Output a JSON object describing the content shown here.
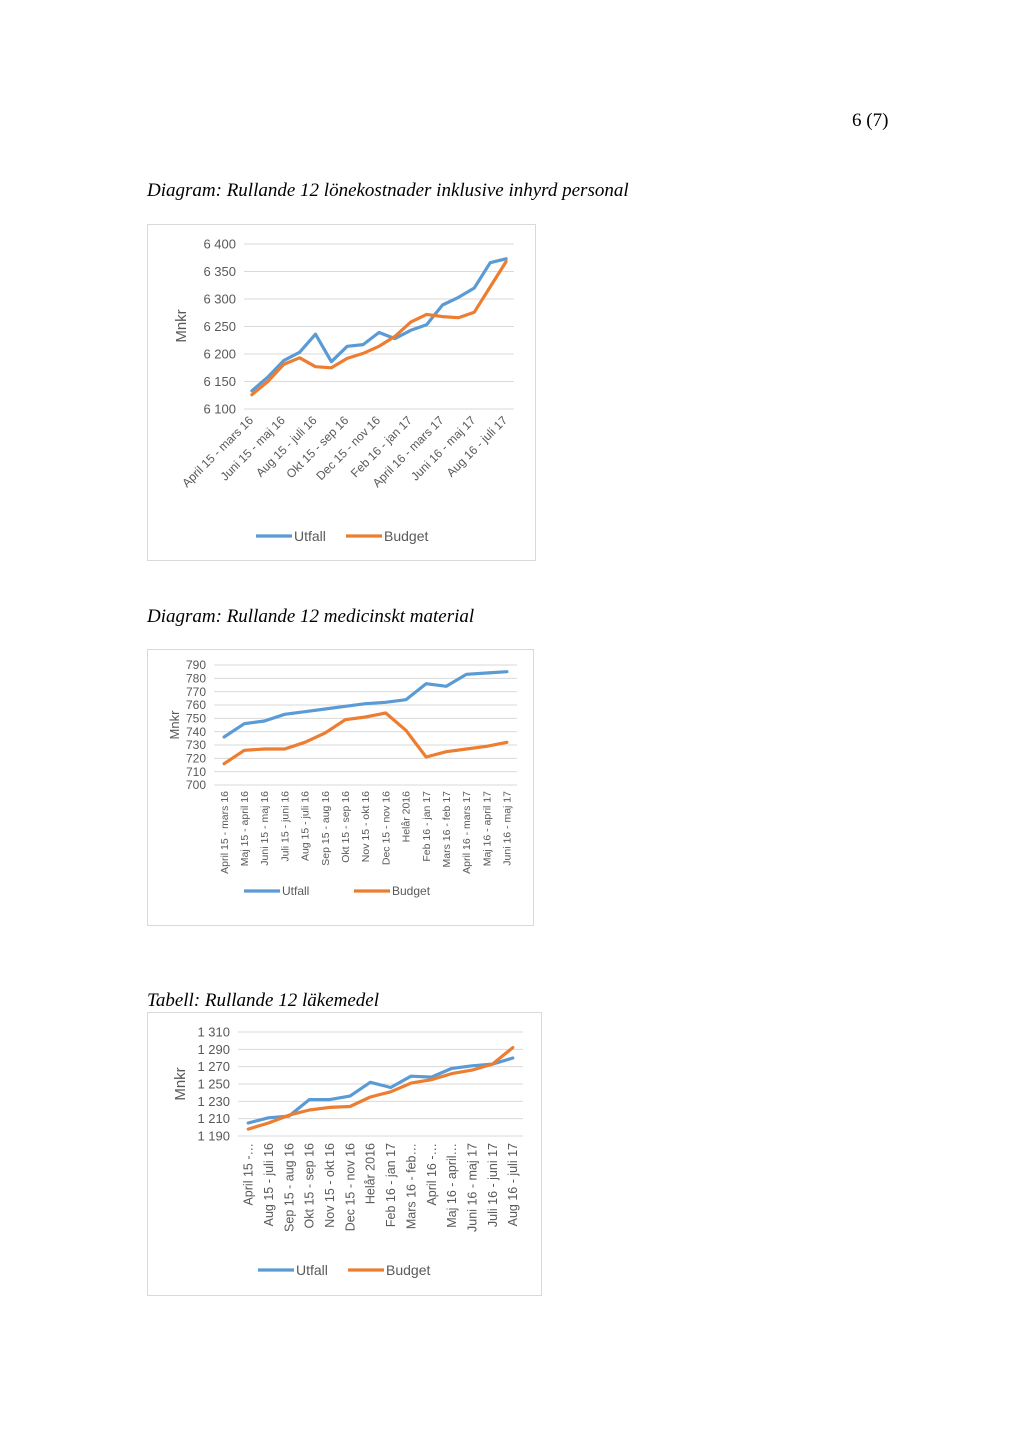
{
  "page": {
    "number": "6 (7)"
  },
  "captions": [
    "Diagram: Rullande 12 lönekostnader inklusive inhyrd personal",
    "Diagram: Rullande 12 medicinskt material",
    "Tabell: Rullande 12 läkemedel"
  ],
  "colors": {
    "utfall": "#5b9bd5",
    "budget": "#ed7d31",
    "grid": "#d9d9d9",
    "text": "#595959"
  },
  "chart_data": [
    {
      "type": "line",
      "title": "",
      "ylabel": "Mnkr",
      "ylim": [
        6100,
        6400
      ],
      "yticks": [
        6100,
        6150,
        6200,
        6250,
        6300,
        6350,
        6400
      ],
      "ytick_labels": [
        "6 100",
        "6 150",
        "6 200",
        "6 250",
        "6 300",
        "6 350",
        "6 400"
      ],
      "x_labels": [
        "April 15 - mars 16",
        "Juni 15 - maj 16",
        "Aug 15 - juli 16",
        "Okt 15 - sep 16",
        "Dec 15 - nov 16",
        "Feb 16 - jan 17",
        "April 16 - mars 17",
        "Juni 16 - maj 17",
        "Aug 16 - juli 17"
      ],
      "n_points": 17,
      "label_every": 2,
      "grid": true,
      "legend_position": "bottom",
      "series": [
        {
          "name": "Utfall",
          "values": [
            6133,
            6158,
            6188,
            6203,
            6236,
            6186,
            6214,
            6217,
            6239,
            6228,
            6243,
            6253,
            6289,
            6303,
            6320,
            6366,
            6373
          ]
        },
        {
          "name": "Budget",
          "values": [
            6126,
            6150,
            6181,
            6193,
            6177,
            6175,
            6192,
            6201,
            6214,
            6232,
            6258,
            6272,
            6268,
            6266,
            6276,
            6322,
            6368
          ]
        }
      ]
    },
    {
      "type": "line",
      "title": "",
      "ylabel": "Mnkr",
      "ylim": [
        700,
        790
      ],
      "yticks": [
        700,
        710,
        720,
        730,
        740,
        750,
        760,
        770,
        780,
        790
      ],
      "ytick_labels": [
        "700",
        "710",
        "720",
        "730",
        "740",
        "750",
        "760",
        "770",
        "780",
        "790"
      ],
      "x_labels": [
        "April 15 - mars 16",
        "Maj 15 - april 16",
        "Juni 15 - maj 16",
        "Juli 15 - juni 16",
        "Aug 15 - juli 16",
        "Sep 15 - aug 16",
        "Okt 15 - sep 16",
        "Nov 15 - okt 16",
        "Dec 15 - nov 16",
        "Helår 2016",
        "Feb 16 - jan 17",
        "Mars 16 - feb 17",
        "April 16 - mars 17",
        "Maj 16 - april 17",
        "Juni 16 - maj 17"
      ],
      "grid": true,
      "legend_position": "bottom",
      "series": [
        {
          "name": "Utfall",
          "values": [
            736,
            746,
            748,
            753,
            755,
            757,
            759,
            761,
            762,
            764,
            776,
            774,
            783,
            784,
            785
          ]
        },
        {
          "name": "Budget",
          "values": [
            716,
            726,
            727,
            727,
            732,
            739,
            749,
            751,
            754,
            741,
            721,
            725,
            727,
            729,
            732
          ]
        }
      ]
    },
    {
      "type": "line",
      "title": "",
      "ylabel": "Mnkr",
      "ylim": [
        1190,
        1310
      ],
      "yticks": [
        1190,
        1210,
        1230,
        1250,
        1270,
        1290,
        1310
      ],
      "ytick_labels": [
        "1 190",
        "1 210",
        "1 230",
        "1 250",
        "1 270",
        "1 290",
        "1 310"
      ],
      "x_labels": [
        "April 15 -…",
        "Aug 15 - juli 16",
        "Sep 15 - aug 16",
        "Okt 15 - sep 16",
        "Nov 15 - okt 16",
        "Dec 15 - nov 16",
        "Helår 2016",
        "Feb 16 - jan 17",
        "Mars 16 - feb…",
        "April 16 -…",
        "Maj 16 - april…",
        "Juni 16 - maj 17",
        "Juli 16 - juni 17",
        "Aug 16 - juli 17"
      ],
      "grid": true,
      "legend_position": "bottom",
      "series": [
        {
          "name": "Utfall",
          "values": [
            1205,
            1211,
            1213,
            1232,
            1232,
            1236,
            1252,
            1246,
            1259,
            1258,
            1268,
            1271,
            1273,
            1280
          ]
        },
        {
          "name": "Budget",
          "values": [
            1198,
            1205,
            1214,
            1220,
            1223,
            1224,
            1235,
            1241,
            1251,
            1255,
            1262,
            1266,
            1273,
            1292
          ]
        }
      ]
    }
  ]
}
